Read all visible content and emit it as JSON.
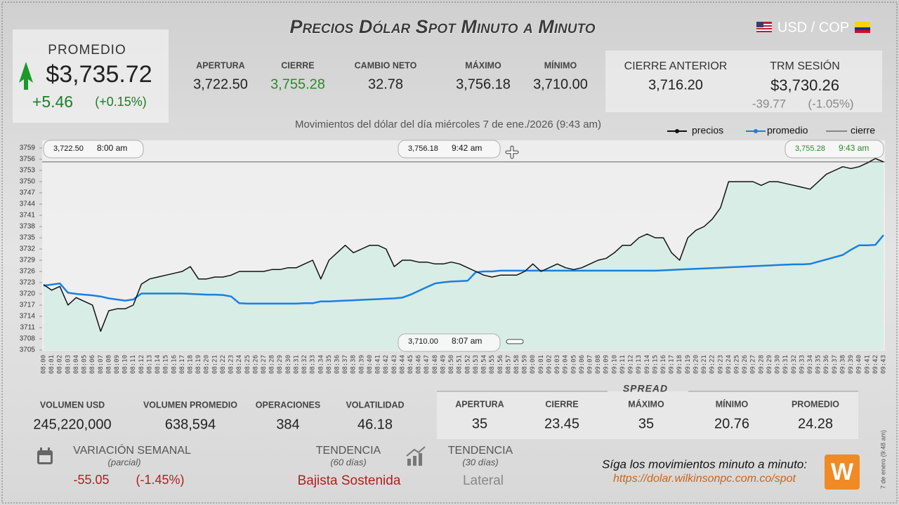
{
  "header": {
    "title": "Precios Dólar Spot Minuto a Minuto",
    "pair": "USD / COP",
    "average": {
      "label": "PROMEDIO",
      "value": "$3,735.72",
      "change": "+5.46",
      "change_pct": "(+0.15%)"
    }
  },
  "session": [
    {
      "label": "APERTURA",
      "value": "3,722.50"
    },
    {
      "label": "CIERRE",
      "value": "3,755.28"
    },
    {
      "label": "CAMBIO NETO",
      "value": "32.78"
    },
    {
      "label": "MÁXIMO",
      "value": "3,756.18"
    },
    {
      "label": "MÍNIMO",
      "value": "3,710.00"
    }
  ],
  "previous": {
    "close": {
      "label": "CIERRE ANTERIOR",
      "value": "3,716.20"
    },
    "trm": {
      "label": "TRM SESIÓN",
      "value": "$3,730.26",
      "change": "-39.77",
      "change_pct": "(-1.05%)"
    }
  },
  "chart_data": {
    "type": "line",
    "subtitle": "Movimientos del dólar del día miércoles 7 de ene./2026 (9:43 am)",
    "categories": [
      "08:00",
      "08:01",
      "08:02",
      "08:03",
      "08:04",
      "08:05",
      "08:06",
      "08:07",
      "08:08",
      "08:09",
      "08:10",
      "08:11",
      "08:12",
      "08:13",
      "08:14",
      "08:15",
      "08:16",
      "08:17",
      "08:18",
      "08:19",
      "08:20",
      "08:21",
      "08:22",
      "08:23",
      "08:24",
      "08:25",
      "08:26",
      "08:27",
      "08:28",
      "08:29",
      "08:30",
      "08:31",
      "08:32",
      "08:33",
      "08:34",
      "08:35",
      "08:36",
      "08:37",
      "08:38",
      "08:39",
      "08:40",
      "08:41",
      "08:42",
      "08:43",
      "08:44",
      "08:45",
      "08:46",
      "08:47",
      "08:48",
      "08:49",
      "08:50",
      "08:51",
      "08:52",
      "08:53",
      "08:54",
      "08:55",
      "08:56",
      "08:57",
      "08:58",
      "08:59",
      "09:00",
      "09:01",
      "09:02",
      "09:03",
      "09:04",
      "09:05",
      "09:06",
      "09:07",
      "09:08",
      "09:09",
      "09:10",
      "09:11",
      "09:12",
      "09:13",
      "09:14",
      "09:15",
      "09:16",
      "09:17",
      "09:18",
      "09:19",
      "09:20",
      "09:21",
      "09:22",
      "09:23",
      "09:24",
      "09:25",
      "09:26",
      "09:27",
      "09:28",
      "09:29",
      "09:30",
      "09:31",
      "09:32",
      "09:33",
      "09:34",
      "09:35",
      "09:36",
      "09:37",
      "09:38",
      "09:39",
      "09:40",
      "09:41",
      "09:42",
      "09:43"
    ],
    "series": [
      {
        "name": "precios",
        "color": "#111111",
        "values": [
          3722.5,
          3721,
          3722,
          3717,
          3719,
          3718,
          3717,
          3710,
          3715.5,
          3716,
          3716,
          3717,
          3722.6,
          3724,
          3724.5,
          3725,
          3725.5,
          3726,
          3727.3,
          3724,
          3724,
          3724.5,
          3724.5,
          3725,
          3726,
          3726,
          3726,
          3726,
          3726.5,
          3726.5,
          3727,
          3727,
          3728,
          3729,
          3724,
          3729,
          3731,
          3733,
          3731,
          3732,
          3733,
          3733,
          3732,
          3727.3,
          3729,
          3729,
          3728.5,
          3728.5,
          3728,
          3728,
          3728.5,
          3728,
          3727,
          3726,
          3725,
          3724.5,
          3725,
          3725,
          3725,
          3726,
          3728,
          3726,
          3727,
          3728,
          3727,
          3726.5,
          3727,
          3728,
          3729,
          3729.5,
          3731,
          3733,
          3733,
          3735,
          3736,
          3735,
          3735,
          3731,
          3729,
          3735,
          3737,
          3738,
          3740,
          3743,
          3750,
          3750,
          3750,
          3750,
          3749,
          3750,
          3750,
          3749.5,
          3749,
          3748.5,
          3748,
          3750,
          3752,
          3753,
          3754,
          3753.5,
          3754,
          3755,
          3756.18,
          3755.28
        ]
      },
      {
        "name": "promedio",
        "color": "#1a7fe0",
        "values": [
          3722.2,
          3722.5,
          3722.8,
          3720.3,
          3720,
          3719.8,
          3719.6,
          3719.3,
          3718.8,
          3718.5,
          3718.2,
          3718.5,
          3720.1,
          3720.1,
          3720.1,
          3720.1,
          3720.1,
          3720.1,
          3720,
          3719.9,
          3719.8,
          3719.8,
          3719.7,
          3719.3,
          3717.5,
          3717.4,
          3717.4,
          3717.4,
          3717.4,
          3717.4,
          3717.4,
          3717.4,
          3717.5,
          3717.5,
          3718,
          3718,
          3718.1,
          3718.2,
          3718.3,
          3718.4,
          3718.5,
          3718.6,
          3718.7,
          3718.8,
          3719,
          3719.8,
          3720.8,
          3721.8,
          3722.8,
          3723.1,
          3723.3,
          3723.4,
          3723.5,
          3725.8,
          3726,
          3726,
          3726.2,
          3726.2,
          3726.2,
          3726.2,
          3726.2,
          3726.2,
          3726.2,
          3726.2,
          3726.2,
          3726.2,
          3726.2,
          3726.2,
          3726.2,
          3726.2,
          3726.2,
          3726.2,
          3726.2,
          3726.2,
          3726.2,
          3726.2,
          3726.3,
          3726.4,
          3726.5,
          3726.6,
          3726.7,
          3726.8,
          3726.9,
          3727,
          3727.1,
          3727.2,
          3727.3,
          3727.4,
          3727.5,
          3727.6,
          3727.7,
          3727.8,
          3727.9,
          3727.9,
          3728,
          3728.6,
          3729.2,
          3729.8,
          3730.4,
          3731.8,
          3733,
          3733,
          3733.1,
          3735.72
        ]
      }
    ],
    "reference_line": {
      "name": "cierre",
      "value": 3755.28,
      "color": "#333333"
    },
    "area_color": "#d3ece4",
    "grid": false,
    "ylim": [
      3705,
      3759
    ],
    "yticks": [
      3705,
      3708,
      3711,
      3714,
      3717,
      3720,
      3723,
      3726,
      3729,
      3732,
      3735,
      3738,
      3741,
      3744,
      3747,
      3750,
      3753,
      3756,
      3759
    ],
    "annotations": [
      {
        "value": "3,722.50",
        "time": "8:00 am"
      },
      {
        "value": "3,756.18",
        "time": "9:42 am"
      },
      {
        "value": "3,755.28",
        "time": "9:43 am"
      },
      {
        "value": "3,710.00",
        "time": "8:07 am"
      }
    ]
  },
  "volume": [
    {
      "label": "VOLUMEN USD",
      "value": "245,220,000"
    },
    {
      "label": "VOLUMEN PROMEDIO",
      "value": "638,594"
    },
    {
      "label": "OPERACIONES",
      "value": "384"
    },
    {
      "label": "VOLATILIDAD",
      "value": "46.18"
    }
  ],
  "spread": {
    "title": "SPREAD",
    "items": [
      {
        "label": "APERTURA",
        "value": "35"
      },
      {
        "label": "CIERRE",
        "value": "23.45"
      },
      {
        "label": "MÁXIMO",
        "value": "35"
      },
      {
        "label": "MÍNIMO",
        "value": "20.76"
      },
      {
        "label": "PROMEDIO",
        "value": "24.28"
      }
    ]
  },
  "weekly": {
    "label": "VARIACIÓN SEMANAL",
    "note": "(parcial)",
    "value": "-55.05",
    "pct": "(-1.45%)"
  },
  "trend_60": {
    "label": "TENDENCIA",
    "note": "(60 días)",
    "value": "Bajista Sostenida"
  },
  "trend_30": {
    "label": "TENDENCIA",
    "note": "(30 días)",
    "value": "Lateral"
  },
  "footer": {
    "follow": "Síga los movimientos minuto a minuto:",
    "url": "https://dolar.wilkinsonpc.com.co/spot",
    "stamp": "7 de enero (9:48 am)",
    "logo": "W"
  }
}
